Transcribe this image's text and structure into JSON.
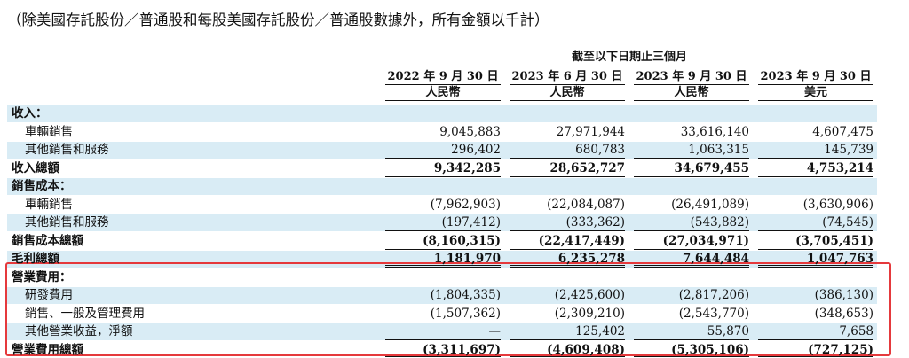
{
  "note": "（除美國存託股份／普通股和每股美國存託股份／普通股數據外，所有金額以千計）",
  "period_header": "截至以下日期止三個月",
  "columns": [
    {
      "date": "2022 年 9 月 30 日",
      "unit": "人民幣"
    },
    {
      "date": "2023 年 6 月 30 日",
      "unit": "人民幣"
    },
    {
      "date": "2023 年 9 月 30 日",
      "unit": "人民幣"
    },
    {
      "date": "2023 年 9 月 30 日",
      "unit": "美元"
    }
  ],
  "rows": [
    {
      "label": "收入：",
      "bold": true,
      "indent": false,
      "values": [
        "",
        "",
        "",
        ""
      ]
    },
    {
      "label": "車輛銷售",
      "bold": false,
      "indent": true,
      "values": [
        "9,045,883",
        "27,971,944",
        "33,616,140",
        "4,607,475"
      ]
    },
    {
      "label": "其他銷售和服務",
      "bold": false,
      "indent": true,
      "values": [
        "296,402",
        "680,783",
        "1,063,315",
        "145,739"
      ]
    },
    {
      "label": "收入總額",
      "bold": true,
      "indent": false,
      "values": [
        "9,342,285",
        "28,652,727",
        "34,679,455",
        "4,753,214"
      ]
    },
    {
      "label": "銷售成本：",
      "bold": true,
      "indent": false,
      "values": [
        "",
        "",
        "",
        ""
      ]
    },
    {
      "label": "車輛銷售",
      "bold": false,
      "indent": true,
      "values": [
        "(7,962,903)",
        "(22,084,087)",
        "(26,491,089)",
        "(3,630,906)"
      ]
    },
    {
      "label": "其他銷售和服務",
      "bold": false,
      "indent": true,
      "values": [
        "(197,412)",
        "(333,362)",
        "(543,882)",
        "(74,545)"
      ]
    },
    {
      "label": "銷售成本總額",
      "bold": true,
      "indent": false,
      "values": [
        "(8,160,315)",
        "(22,417,449)",
        "(27,034,971)",
        "(3,705,451)"
      ]
    },
    {
      "label": "毛利總額",
      "bold": true,
      "indent": false,
      "values": [
        "1,181,970",
        "6,235,278",
        "7,644,484",
        "1,047,763"
      ]
    },
    {
      "label": "營業費用：",
      "bold": true,
      "indent": false,
      "values": [
        "",
        "",
        "",
        ""
      ]
    },
    {
      "label": "研發費用",
      "bold": false,
      "indent": true,
      "values": [
        "(1,804,335)",
        "(2,425,600)",
        "(2,817,206)",
        "(386,130)"
      ]
    },
    {
      "label": "銷售、一般及管理費用",
      "bold": false,
      "indent": true,
      "values": [
        "(1,507,362)",
        "(2,309,210)",
        "(2,543,770)",
        "(348,653)"
      ]
    },
    {
      "label": "其他營業收益，淨額",
      "bold": false,
      "indent": true,
      "values": [
        "—",
        "125,402",
        "55,870",
        "7,658"
      ]
    },
    {
      "label": "營業費用總額",
      "bold": true,
      "indent": false,
      "values": [
        "(3,311,697)",
        "(4,609,408)",
        "(5,305,106)",
        "(727,125)"
      ]
    }
  ]
}
